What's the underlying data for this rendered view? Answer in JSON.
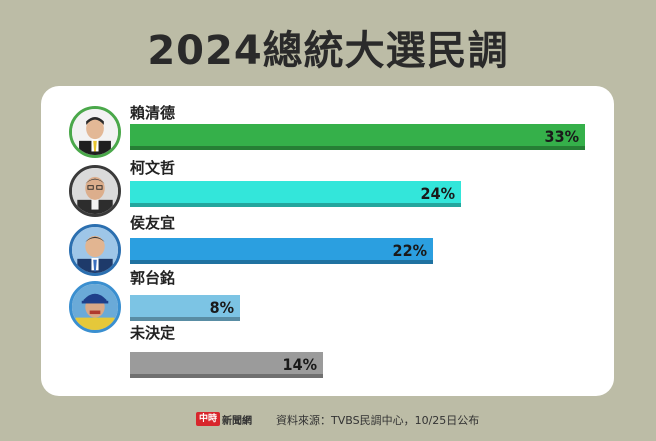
{
  "title": "2024總統大選民調",
  "chart_data": {
    "type": "bar",
    "orientation": "horizontal",
    "title": "2024總統大選民調",
    "categories": [
      "賴清德",
      "柯文哲",
      "侯友宜",
      "郭台銘",
      "未決定"
    ],
    "values": [
      33,
      24,
      22,
      8,
      14
    ],
    "value_labels": [
      "33%",
      "24%",
      "22%",
      "8%",
      "14%"
    ],
    "unit": "%",
    "xlim": [
      0,
      33
    ],
    "colors": [
      "#35b04a",
      "#33e6da",
      "#2b9fe0",
      "#7cc4e4",
      "#9b9b9b"
    ],
    "grid": false,
    "legend": "none"
  },
  "footer": {
    "logo_box": "中時",
    "logo_text": "新聞網",
    "source": "資料來源：TVBS民調中心，10/25日公布"
  },
  "avatars": [
    {
      "icon": "lai-portrait-icon",
      "border": "#4aa84a"
    },
    {
      "icon": "ko-portrait-icon",
      "border": "#3a3a3a"
    },
    {
      "icon": "hou-portrait-icon",
      "border": "#2b6fb0"
    },
    {
      "icon": "gou-portrait-icon",
      "border": "#3a8fd0"
    }
  ]
}
